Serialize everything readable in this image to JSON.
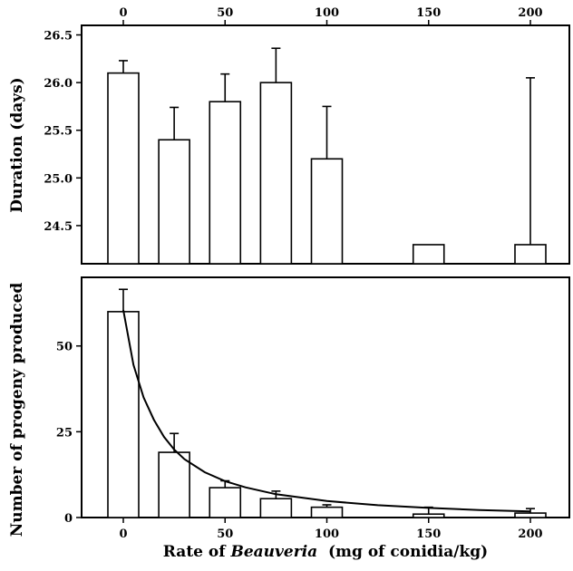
{
  "chart_data": [
    {
      "type": "bar",
      "panel": "top",
      "x_tick_labels": [
        "0",
        "50",
        "100",
        "150",
        "200"
      ],
      "x_tick_values": [
        0,
        50,
        100,
        150,
        200
      ],
      "ylabel": "Duration (days)",
      "ylim": [
        24.1,
        26.6
      ],
      "y_tick_labels": [
        "26.5",
        "26.0",
        "25.5",
        "25.0",
        "24.5"
      ],
      "y_tick_values": [
        26.5,
        26.0,
        25.5,
        25.0,
        24.5
      ],
      "x_axis_ticks_position": "top",
      "grid": false,
      "bars": [
        {
          "x": 0,
          "value": 26.1,
          "error": 0.13
        },
        {
          "x": 25,
          "value": 25.4,
          "error": 0.34
        },
        {
          "x": 50,
          "value": 25.8,
          "error": 0.29
        },
        {
          "x": 75,
          "value": 26.0,
          "error": 0.36
        },
        {
          "x": 100,
          "value": 25.2,
          "error": 0.55
        },
        {
          "x": 150,
          "value": 24.3,
          "error": 0
        },
        {
          "x": 200,
          "value": 24.3,
          "error": 1.75
        }
      ]
    },
    {
      "type": "bar",
      "panel": "bottom",
      "xlabel_prefix": "Rate of ",
      "xlabel_italic": "Beauveria",
      "xlabel_suffix": "  (mg of conidia/kg)",
      "ylabel": "Number of progeny produced",
      "x_tick_labels": [
        "0",
        "50",
        "100",
        "150",
        "200"
      ],
      "x_tick_values": [
        0,
        50,
        100,
        150,
        200
      ],
      "ylim": [
        0,
        70
      ],
      "y_tick_labels": [
        "50",
        "25",
        "0"
      ],
      "y_tick_values": [
        50,
        25,
        0
      ],
      "grid": false,
      "bars": [
        {
          "x": 0,
          "value": 60,
          "error": 6.5
        },
        {
          "x": 25,
          "value": 19,
          "error": 5.5
        },
        {
          "x": 50,
          "value": 8.7,
          "error": 2.0
        },
        {
          "x": 75,
          "value": 5.5,
          "error": 2.2
        },
        {
          "x": 100,
          "value": 3.0,
          "error": 0.7
        },
        {
          "x": 150,
          "value": 1.0,
          "error": 2.0
        },
        {
          "x": 200,
          "value": 1.3,
          "error": 1.3
        }
      ],
      "fit_curve": {
        "x": [
          0,
          5,
          10,
          15,
          20,
          25,
          30,
          40,
          50,
          60,
          75,
          100,
          125,
          150,
          175,
          200
        ],
        "y": [
          60.5,
          44.5,
          35,
          28.5,
          23.5,
          19.8,
          17.0,
          13.2,
          10.6,
          8.8,
          6.8,
          4.8,
          3.6,
          2.8,
          2.2,
          1.8
        ]
      }
    }
  ]
}
